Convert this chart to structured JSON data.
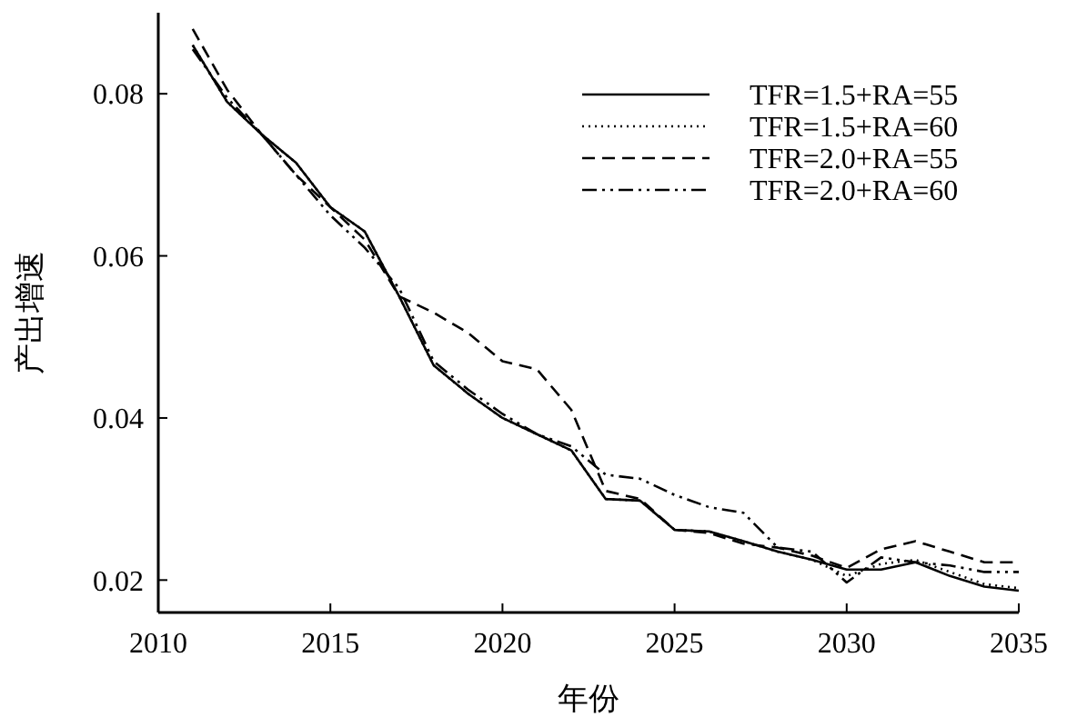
{
  "chart_data": {
    "type": "line",
    "xlabel": "年份",
    "ylabel": "产出增速",
    "x": [
      2011,
      2012,
      2013,
      2014,
      2015,
      2016,
      2017,
      2018,
      2019,
      2020,
      2021,
      2022,
      2023,
      2024,
      2025,
      2026,
      2027,
      2028,
      2029,
      2030,
      2031,
      2032,
      2033,
      2034,
      2035
    ],
    "xlim": [
      2010,
      2035
    ],
    "xticks": [
      2010,
      2015,
      2020,
      2025,
      2030,
      2035
    ],
    "ylim": [
      0.016,
      0.09
    ],
    "yticks": [
      0.02,
      0.04,
      0.06,
      0.08
    ],
    "grid": false,
    "legend": "top right",
    "series": [
      {
        "name": "TFR=1.5+RA=55",
        "color": "#000000",
        "line_style": "solid",
        "values": [
          0.086,
          0.079,
          0.075,
          0.0715,
          0.066,
          0.063,
          0.055,
          0.0465,
          0.043,
          0.04,
          0.038,
          0.036,
          0.03,
          0.0298,
          0.0262,
          0.026,
          0.0248,
          0.0235,
          0.0225,
          0.0213,
          0.0213,
          0.0222,
          0.0205,
          0.0192,
          0.0187
        ]
      },
      {
        "name": "TFR=1.5+RA=60",
        "color": "#000000",
        "line_style": "dotted",
        "values": [
          0.086,
          0.079,
          0.075,
          0.0715,
          0.066,
          0.063,
          0.055,
          0.0465,
          0.043,
          0.04,
          0.038,
          0.036,
          0.03,
          0.0298,
          0.0262,
          0.026,
          0.0248,
          0.0235,
          0.0225,
          0.0205,
          0.022,
          0.0225,
          0.021,
          0.0195,
          0.019
        ]
      },
      {
        "name": "TFR=2.0+RA=55",
        "color": "#000000",
        "line_style": "dashed",
        "values": [
          0.088,
          0.0805,
          0.075,
          0.07,
          0.066,
          0.062,
          0.055,
          0.053,
          0.0505,
          0.047,
          0.046,
          0.041,
          0.031,
          0.03,
          0.0262,
          0.0258,
          0.0245,
          0.024,
          0.023,
          0.0215,
          0.0238,
          0.0248,
          0.0235,
          0.0222,
          0.0222
        ]
      },
      {
        "name": "TFR=2.0+RA=60",
        "color": "#000000",
        "line_style": "dashdot",
        "values": [
          0.0855,
          0.0795,
          0.075,
          0.07,
          0.065,
          0.061,
          0.056,
          0.047,
          0.0435,
          0.0405,
          0.038,
          0.0365,
          0.033,
          0.0325,
          0.0305,
          0.029,
          0.0283,
          0.024,
          0.0235,
          0.0197,
          0.0228,
          0.0222,
          0.0218,
          0.021,
          0.021
        ]
      }
    ]
  }
}
